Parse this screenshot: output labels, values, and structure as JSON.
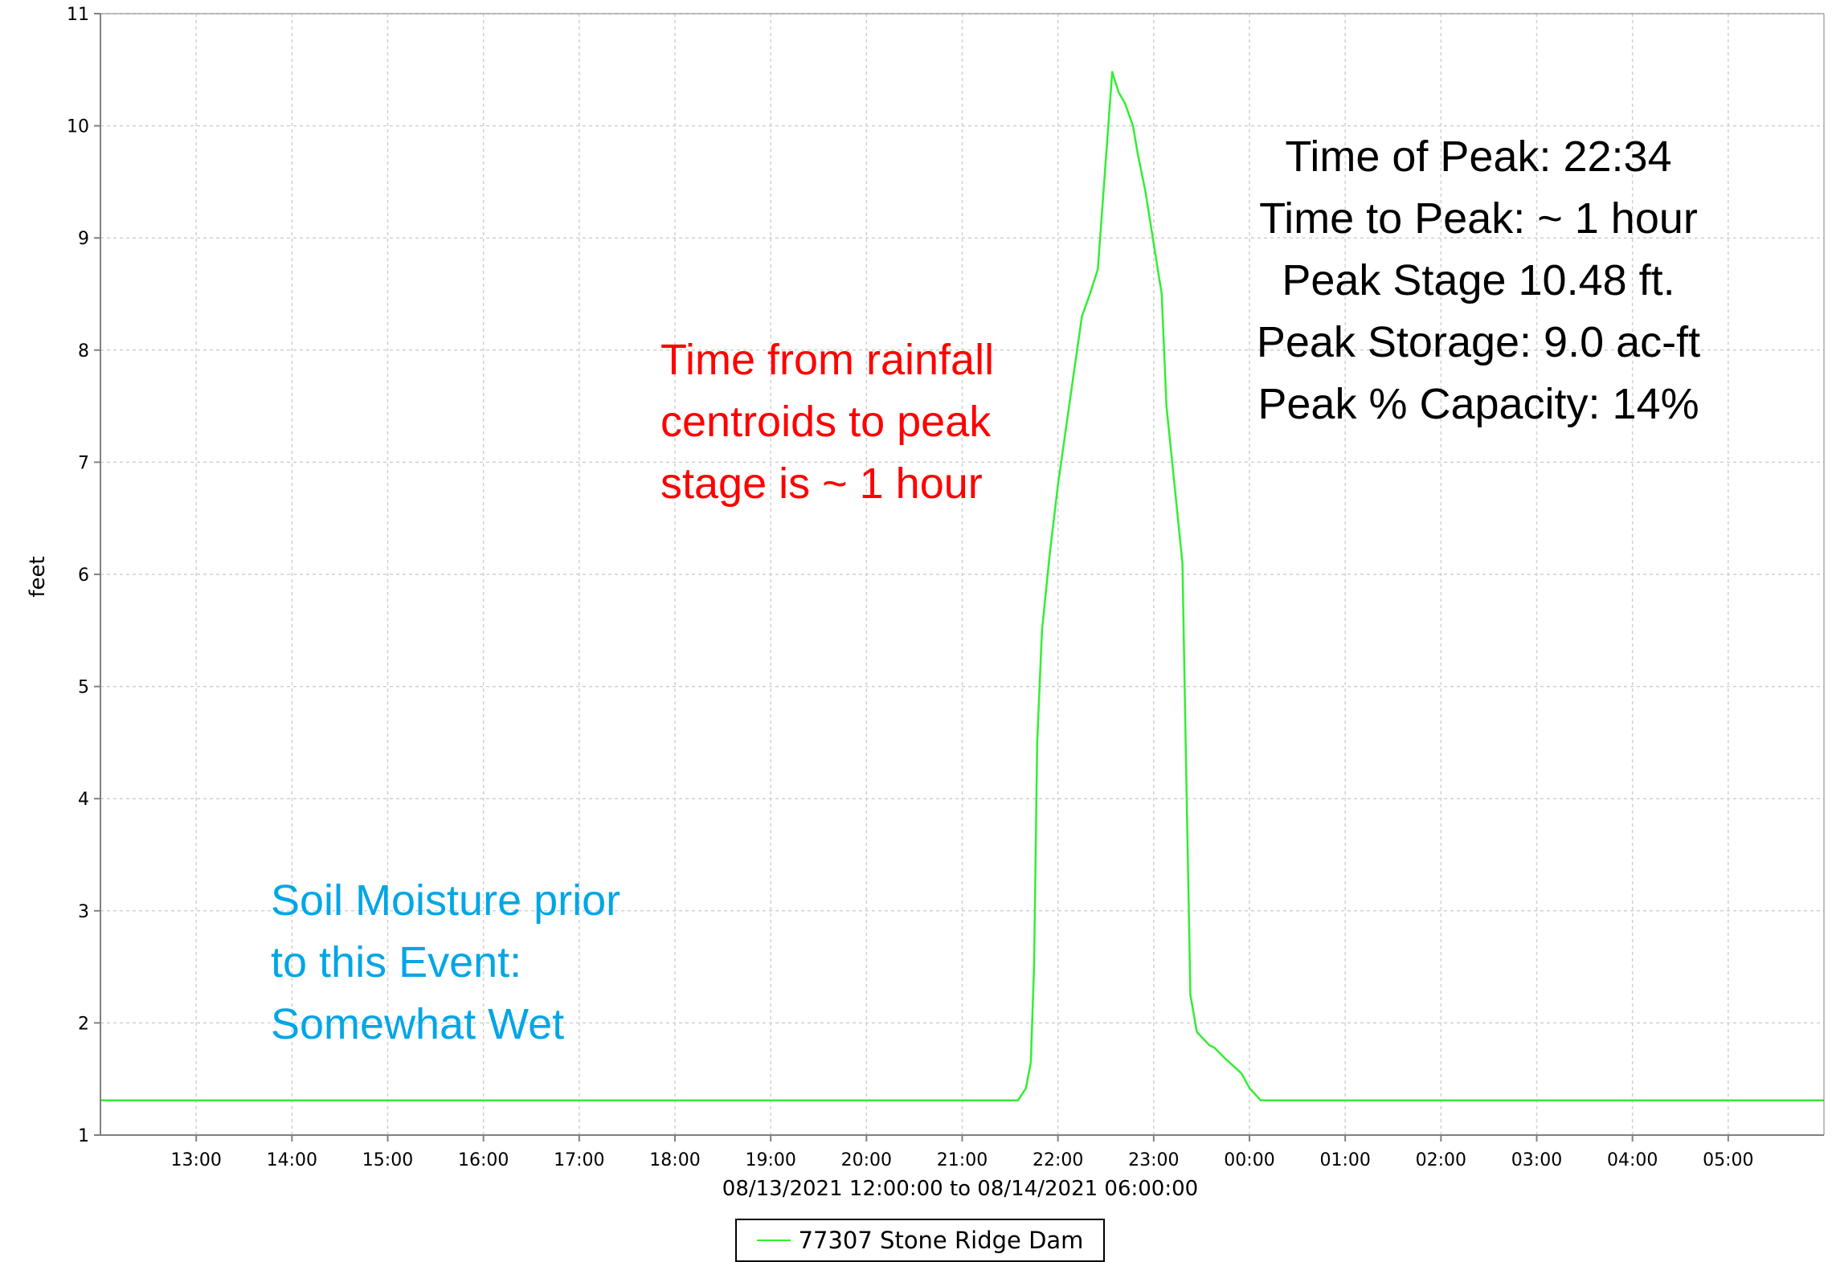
{
  "chart_data": {
    "type": "line",
    "xlabel": "08/13/2021 12:00:00 to 08/14/2021 06:00:00",
    "ylabel": "feet",
    "ylim": [
      1,
      11
    ],
    "xlim": [
      "2021-08-13 12:00",
      "2021-08-14 06:00"
    ],
    "grid": true,
    "legend_position": "bottom-center",
    "x_tick_labels": [
      "13:00",
      "14:00",
      "15:00",
      "16:00",
      "17:00",
      "18:00",
      "19:00",
      "20:00",
      "21:00",
      "22:00",
      "23:00",
      "00:00",
      "01:00",
      "02:00",
      "03:00",
      "04:00",
      "05:00"
    ],
    "y_tick_labels": [
      "1",
      "2",
      "3",
      "4",
      "5",
      "6",
      "7",
      "8",
      "9",
      "10",
      "11"
    ],
    "series": [
      {
        "name": "77307 Stone Ridge Dam",
        "color": "#33ee33",
        "points": [
          [
            "2021-08-13 12:00",
            1.31
          ],
          [
            "2021-08-13 21:35",
            1.31
          ],
          [
            "2021-08-13 21:40",
            1.42
          ],
          [
            "2021-08-13 21:43",
            1.65
          ],
          [
            "2021-08-13 21:45",
            2.5
          ],
          [
            "2021-08-13 21:46",
            3.5
          ],
          [
            "2021-08-13 21:47",
            4.5
          ],
          [
            "2021-08-13 21:50",
            5.5
          ],
          [
            "2021-08-13 21:55",
            6.2
          ],
          [
            "2021-08-13 22:00",
            6.8
          ],
          [
            "2021-08-13 22:05",
            7.3
          ],
          [
            "2021-08-13 22:10",
            7.8
          ],
          [
            "2021-08-13 22:15",
            8.3
          ],
          [
            "2021-08-13 22:20",
            8.5
          ],
          [
            "2021-08-13 22:25",
            8.72
          ],
          [
            "2021-08-13 22:34",
            10.48
          ],
          [
            "2021-08-13 22:38",
            10.3
          ],
          [
            "2021-08-13 22:42",
            10.2
          ],
          [
            "2021-08-13 22:47",
            10.0
          ],
          [
            "2021-08-13 22:50",
            9.75
          ],
          [
            "2021-08-13 22:55",
            9.4
          ],
          [
            "2021-08-13 23:00",
            8.95
          ],
          [
            "2021-08-13 23:05",
            8.5
          ],
          [
            "2021-08-13 23:08",
            7.5
          ],
          [
            "2021-08-13 23:13",
            6.8
          ],
          [
            "2021-08-13 23:18",
            6.1
          ],
          [
            "2021-08-13 23:20",
            4.5
          ],
          [
            "2021-08-13 23:23",
            2.25
          ],
          [
            "2021-08-13 23:27",
            1.92
          ],
          [
            "2021-08-13 23:35",
            1.8
          ],
          [
            "2021-08-13 23:38",
            1.78
          ],
          [
            "2021-08-13 23:45",
            1.68
          ],
          [
            "2021-08-13 23:55",
            1.55
          ],
          [
            "2021-08-14 00:00",
            1.42
          ],
          [
            "2021-08-14 00:07",
            1.31
          ],
          [
            "2021-08-14 06:00",
            1.31
          ]
        ]
      }
    ],
    "annotations": [
      [
        "Time from rainfall",
        "centroids to peak",
        "stage is ~ 1 hour"
      ],
      [
        "Soil Moisture prior",
        "to this Event:",
        "Somewhat Wet"
      ],
      [
        "Time of Peak: 22:34",
        "Time to Peak: ~ 1 hour",
        "Peak Stage 10.48 ft.",
        "Peak Storage: 9.0 ac-ft",
        "Peak % Capacity: 14%"
      ]
    ],
    "annotation_colors": [
      "#ff0000",
      "#00a6e6",
      "#000000"
    ]
  }
}
